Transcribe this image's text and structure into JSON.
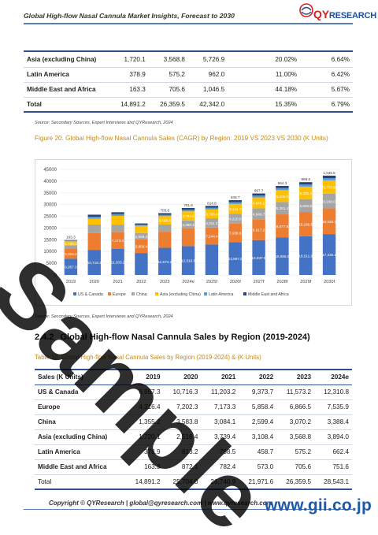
{
  "header": {
    "title": "Global High-flow Nasal Cannula Market Insights, Forecast to 2030",
    "logo_prefix": "QY",
    "logo_suffix": "RESEARCH"
  },
  "table1": {
    "rows": [
      {
        "region": "Asia (excluding China)",
        "v2019": "1,720.1",
        "v2023": "3,568.8",
        "v2030": "5,726.9",
        "share": "20.02%",
        "cagr": "6.64%"
      },
      {
        "region": "Latin America",
        "v2019": "378.9",
        "v2023": "575.2",
        "v2030": "962.0",
        "share": "11.00%",
        "cagr": "6.42%"
      },
      {
        "region": "Middle East and Africa",
        "v2019": "163.3",
        "v2023": "705.6",
        "v2030": "1,046.5",
        "share": "44.18%",
        "cagr": "5.67%"
      }
    ],
    "total": {
      "region": "Total",
      "v2019": "14,891.2",
      "v2023": "26,359.5",
      "v2030": "42,342.0",
      "share": "15.35%",
      "cagr": "6.79%"
    }
  },
  "source1": "Source: Secondary Sources, Expert Interviews and QYResearch, 2024",
  "figure_title": "Figure 20.   Global High-flow Nasal Cannula Sales (CAGR) by Region: 2019 VS 2023 VS 2030 (K Units)",
  "chart_data": {
    "type": "bar",
    "stacked": true,
    "categories": [
      "2019",
      "2020",
      "2021",
      "2022",
      "2023",
      "2024e",
      "2025f",
      "2026f",
      "2027f",
      "2028f",
      "2029f",
      "2030f"
    ],
    "ylim": [
      0,
      45000
    ],
    "yticks": [
      "0",
      "5000",
      "10000",
      "15000",
      "20000",
      "25000",
      "30000",
      "35000",
      "40000",
      "45000"
    ],
    "legend_position": "bottom",
    "series": [
      {
        "name": "US & Canada",
        "color": "#4472c4",
        "values": [
          6957.3,
          10716.3,
          11203.2,
          9373.7,
          11573.2,
          12310.8,
          13000,
          13987.8,
          14837.5,
          15965.6,
          16511.9,
          17432.3
        ],
        "labels": [
          "6,957.3",
          "10,716.3",
          "11,203.2",
          "",
          "11,573.2",
          "12,310.8",
          "",
          "13,987.8",
          "14,837.5",
          "15,965.6",
          "16,511.9",
          "17,432.3"
        ]
      },
      {
        "name": "Europe",
        "color": "#ed7d31",
        "values": [
          4316.4,
          7202.3,
          7173.3,
          5858.4,
          6866.5,
          7535.9,
          7244.4,
          7938.6,
          8917.2,
          9877.8,
          10186.5,
          10926.3
        ],
        "labels": [
          "4,316.4",
          "",
          "7,173.3",
          "5,858.4",
          "",
          "",
          "7,244.4",
          "7,938.6",
          "8,917.2",
          "9,877.8",
          "10,186.5",
          "10,926.3"
        ]
      },
      {
        "name": "China",
        "color": "#a5a5a5",
        "values": [
          1355.2,
          3583.8,
          3084.1,
          2599.4,
          3070.2,
          3388.4,
          3911.3,
          4210.0,
          4646.7,
          5281.4,
          5655.5,
          6248.0
        ],
        "labels": [
          "",
          "",
          "",
          "2,599.4",
          "",
          "3,388.4",
          "3,911.3",
          "4,210.0",
          "4,646.7",
          "5,281.4",
          "5,655.5",
          "6,248.0"
        ]
      },
      {
        "name": "Asia (excluding China)",
        "color": "#ffc000",
        "values": [
          1720.1,
          2516.4,
          3739.4,
          3108.4,
          3568.8,
          3894.0,
          3788.4,
          4144.7,
          4646.1,
          5035.0,
          5305.4,
          5726.9
        ],
        "labels": [
          "1,720.1",
          "",
          "",
          "",
          "3,568.8",
          "3,894.0",
          "3,788.4",
          "4,144.7",
          "4,646.1",
          "5,035.0",
          "5,305.4",
          "5,726.9"
        ]
      },
      {
        "name": "Latin America",
        "color": "#5b9bd5",
        "values": [
          378.9,
          813.2,
          758.5,
          458.7,
          575.2,
          662.4,
          700,
          750,
          800,
          850,
          900,
          962.0
        ],
        "labels": [
          "",
          "",
          "",
          "",
          "",
          "",
          "",
          "",
          "",
          "",
          "",
          ""
        ]
      },
      {
        "name": "Middle East and Africa",
        "color": "#264478",
        "values": [
          163.3,
          872.1,
          782.4,
          573.0,
          705.6,
          751.6,
          814.8,
          848.7,
          897.7,
          964.3,
          999.6,
          1046.5
        ],
        "labels": [
          "163.3",
          "",
          "",
          "",
          "705.6",
          "751.6",
          "814.8",
          "848.7",
          "897.7",
          "964.3",
          "999.6",
          "1,046.5"
        ]
      }
    ]
  },
  "source2": "Source: Secondary Sources, Expert Interviews and QYResearch, 2024",
  "section": {
    "number": "2.4.2",
    "title": "Global High-flow Nasal Cannula Sales by Region (2019-2024)"
  },
  "table2_title": "Table 10.   Global High-flow Nasal Cannula Sales by Region (2019-2024) & (K Units)",
  "table2": {
    "headers": [
      "Sales (K Units)",
      "2019",
      "2020",
      "2021",
      "2022",
      "2023",
      "2024e"
    ],
    "rows": [
      [
        "US & Canada",
        "6,957.3",
        "10,716.3",
        "11,203.2",
        "9,373.7",
        "11,573.2",
        "12,310.8"
      ],
      [
        "Europe",
        "4,316.4",
        "7,202.3",
        "7,173.3",
        "5,858.4",
        "6,866.5",
        "7,535.9"
      ],
      [
        "China",
        "1,355.2",
        "3,583.8",
        "3,084.1",
        "2,599.4",
        "3,070.2",
        "3,388.4"
      ],
      [
        "Asia (excluding China)",
        "1,720.1",
        "2,516.4",
        "3,739.4",
        "3,108.4",
        "3,568.8",
        "3,894.0"
      ],
      [
        "Latin America",
        "378.9",
        "813.2",
        "758.5",
        "458.7",
        "575.2",
        "662.4"
      ],
      [
        "Middle East and Africa",
        "163.3",
        "872.1",
        "782.4",
        "573.0",
        "705.6",
        "751.6"
      ],
      [
        "Total",
        "14,891.2",
        "25,704.0",
        "26,740.9",
        "21,971.6",
        "26,359.5",
        "28,543.1"
      ]
    ]
  },
  "footer": {
    "text": "Copyright © QYResearch | global@qyresearch.com | www.qyresearch.com",
    "brand": "www.gii.co.jp"
  },
  "watermark": "Sample"
}
